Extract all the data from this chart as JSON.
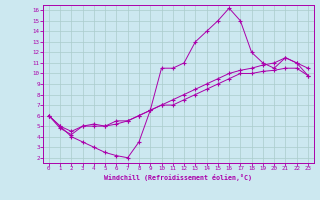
{
  "title": "",
  "xlabel": "Windchill (Refroidissement éolien,°C)",
  "ylabel": "",
  "bg_color": "#cce8f0",
  "line_color": "#aa00aa",
  "grid_color": "#aacccc",
  "xlim": [
    -0.5,
    23.5
  ],
  "ylim": [
    1.5,
    16.5
  ],
  "xticks": [
    0,
    1,
    2,
    3,
    4,
    5,
    6,
    7,
    8,
    9,
    10,
    11,
    12,
    13,
    14,
    15,
    16,
    17,
    18,
    19,
    20,
    21,
    22,
    23
  ],
  "yticks": [
    2,
    3,
    4,
    5,
    6,
    7,
    8,
    9,
    10,
    11,
    12,
    13,
    14,
    15,
    16
  ],
  "series": [
    {
      "x": [
        0,
        1,
        2,
        3,
        4,
        5,
        6,
        7,
        8,
        9,
        10,
        11,
        12,
        13,
        14,
        15,
        16,
        17,
        18,
        19,
        20,
        21,
        22,
        23
      ],
      "y": [
        6,
        5,
        4,
        3.5,
        3,
        2.5,
        2.2,
        2.0,
        3.5,
        6.5,
        10.5,
        10.5,
        11,
        13,
        14,
        15,
        16.2,
        15,
        12,
        11,
        10.5,
        11.5,
        11,
        9.8
      ]
    },
    {
      "x": [
        0,
        1,
        2,
        3,
        4,
        5,
        6,
        7,
        8,
        9,
        10,
        11,
        12,
        13,
        14,
        15,
        16,
        17,
        18,
        19,
        20,
        21,
        22,
        23
      ],
      "y": [
        6,
        4.8,
        4.2,
        5.0,
        5.2,
        5.0,
        5.5,
        5.5,
        6.0,
        6.5,
        7.0,
        7.5,
        8.0,
        8.5,
        9.0,
        9.5,
        10.0,
        10.3,
        10.5,
        10.8,
        11.0,
        11.5,
        11.0,
        10.5
      ]
    },
    {
      "x": [
        0,
        1,
        2,
        3,
        4,
        5,
        6,
        7,
        8,
        9,
        10,
        11,
        12,
        13,
        14,
        15,
        16,
        17,
        18,
        19,
        20,
        21,
        22,
        23
      ],
      "y": [
        6,
        5,
        4.5,
        5.0,
        5.0,
        5.0,
        5.2,
        5.5,
        6.0,
        6.5,
        7.0,
        7.0,
        7.5,
        8.0,
        8.5,
        9.0,
        9.5,
        10.0,
        10.0,
        10.2,
        10.3,
        10.5,
        10.5,
        9.8
      ]
    }
  ]
}
